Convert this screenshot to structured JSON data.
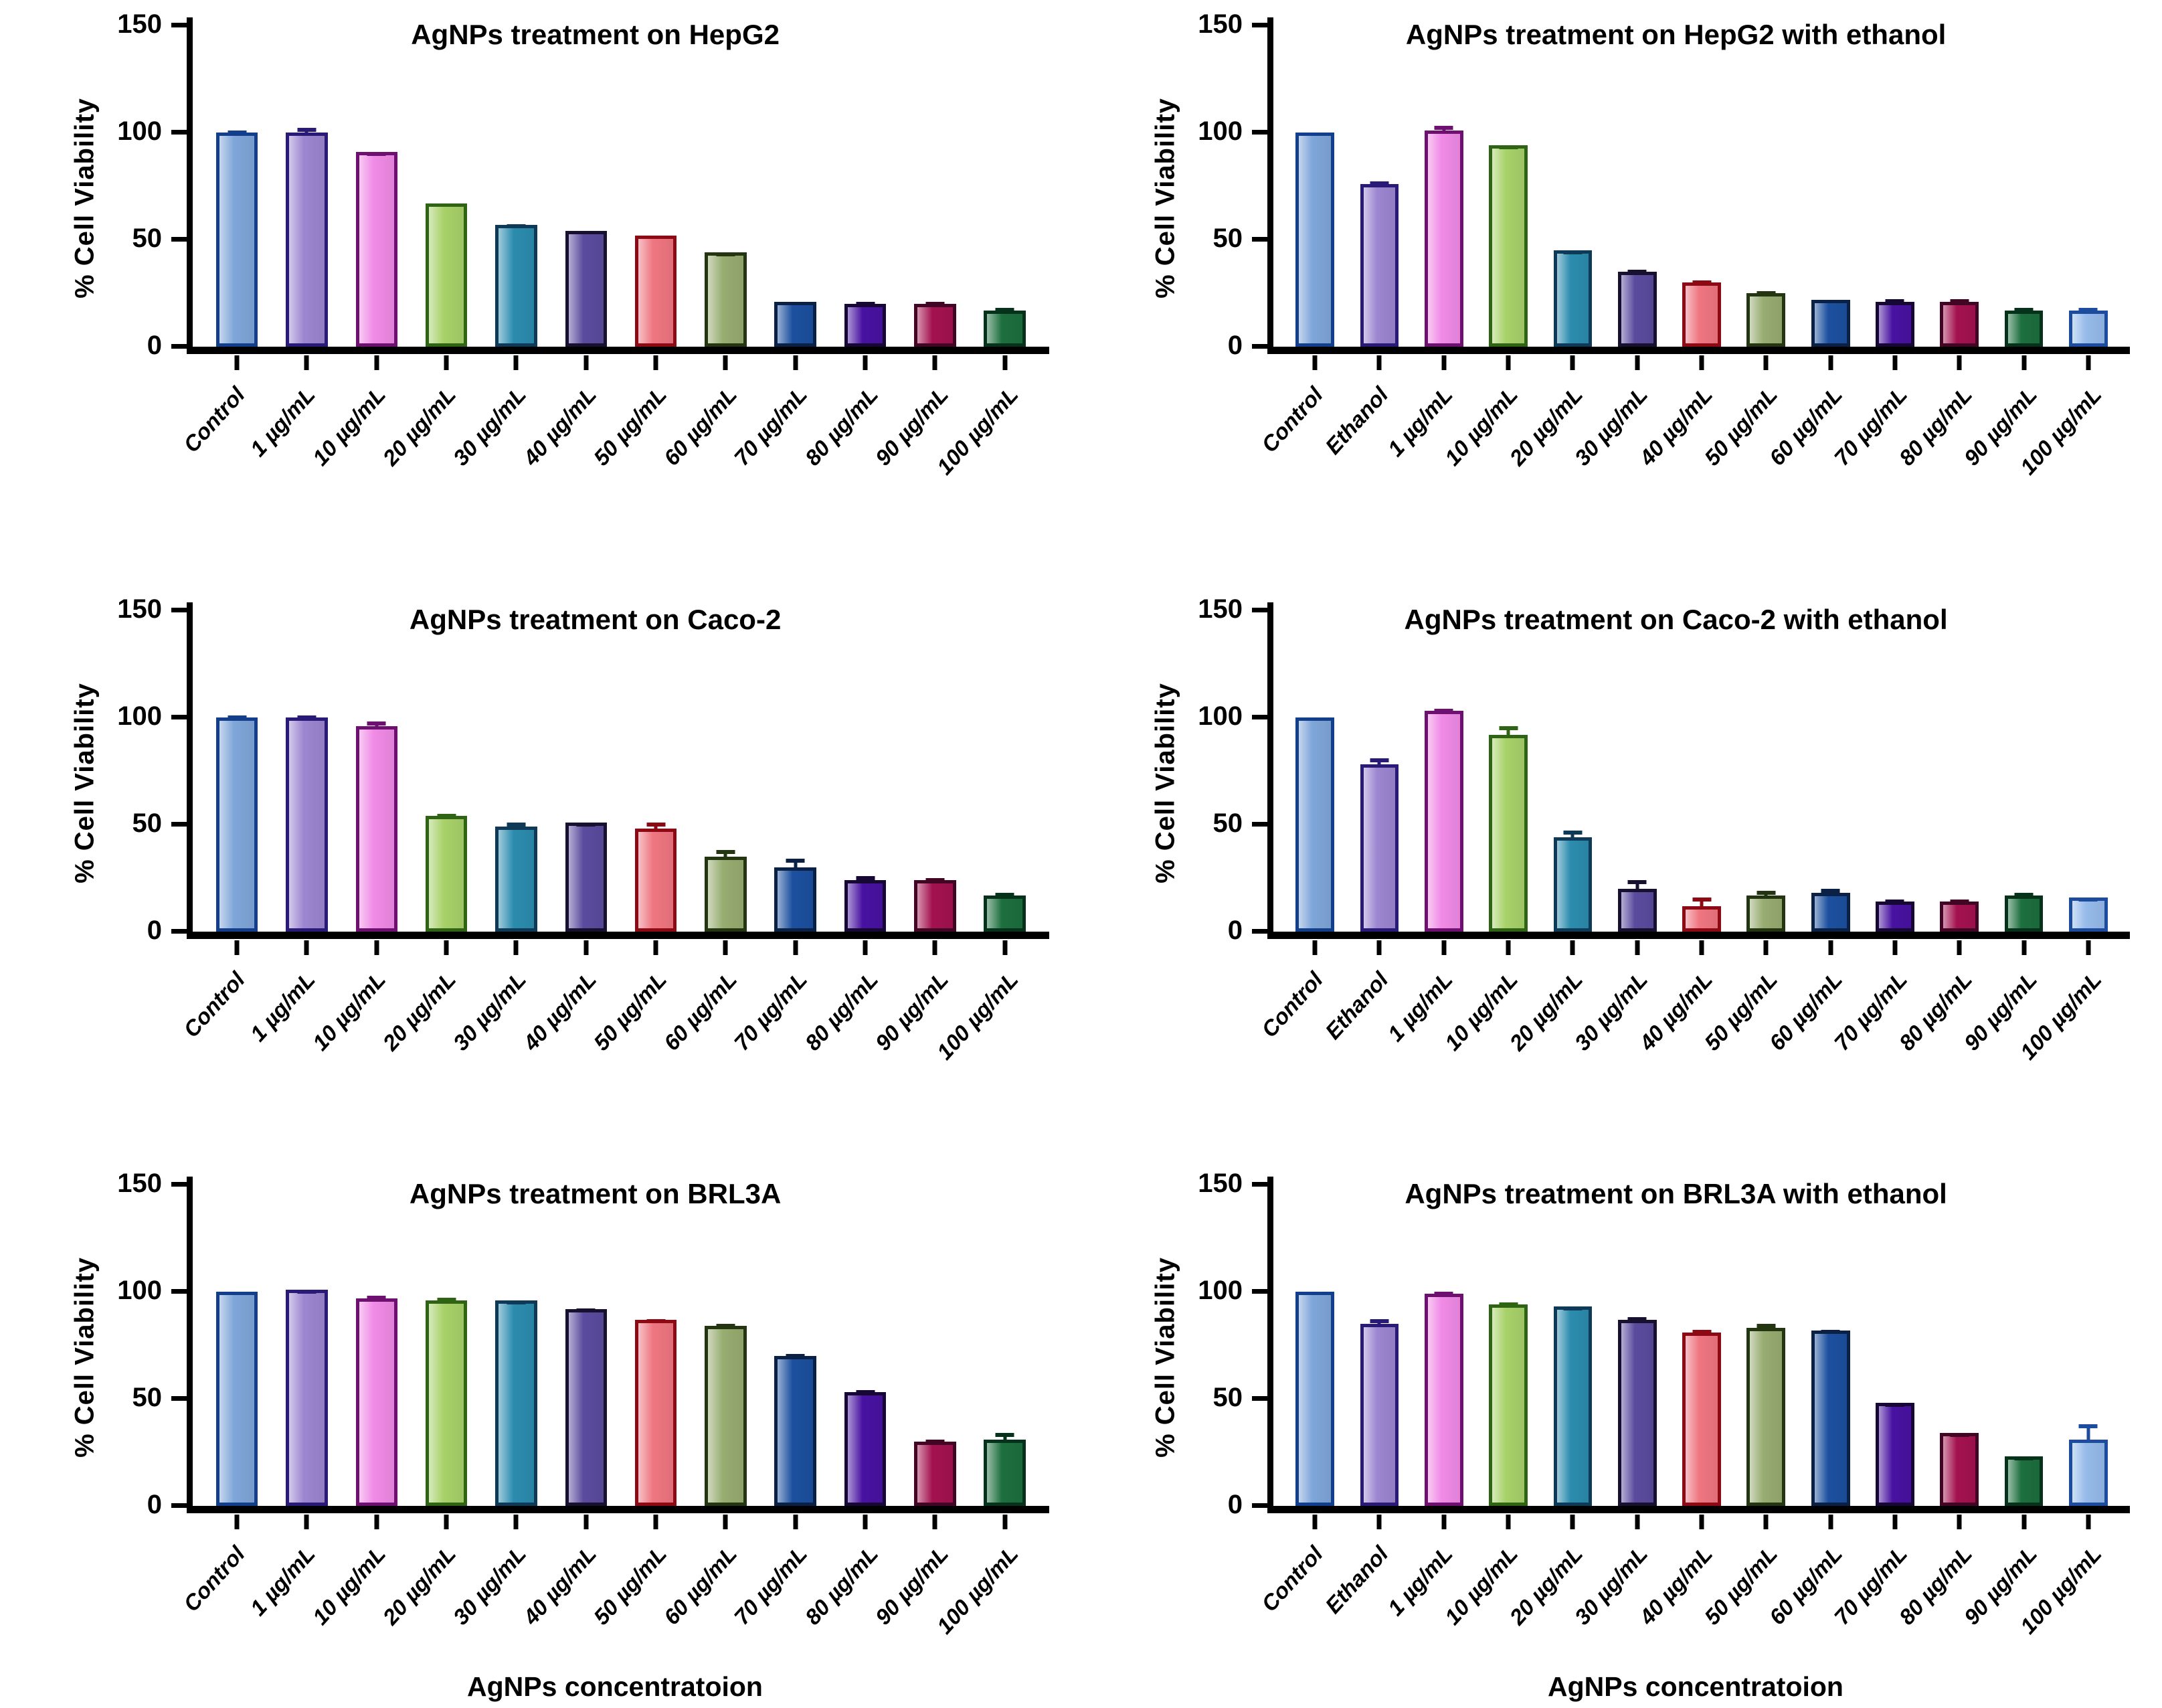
{
  "figure": {
    "y_axis_label": "% Cell Viability",
    "x_axis_title": "AgNPs concentratoion"
  },
  "palette": {
    "fills": [
      "#7FA6D9",
      "#9C86D0",
      "#F08AE6",
      "#A7D169",
      "#2C8CAE",
      "#5B4B9E",
      "#EE7681",
      "#97AC70",
      "#1C509F",
      "#4812A1",
      "#A3124F",
      "#1D6F3E",
      "#96BAEA"
    ],
    "borders": [
      "#123E8C",
      "#2A1A78",
      "#6E1070",
      "#2E6414",
      "#0E3A57",
      "#17102F",
      "#8D0A14",
      "#243611",
      "#0A2145",
      "#170734",
      "#420523",
      "#06321C",
      "#1D4C9F"
    ]
  },
  "chart_data": [
    {
      "type": "bar",
      "key": "hepg2",
      "title": "AgNPs treatment on HepG2",
      "ylabel": "% Cell Viability",
      "xlabel": "",
      "ylim": [
        0,
        150
      ],
      "yticks": [
        0,
        50,
        100,
        150
      ],
      "categories": [
        "Control",
        "1 µg/mL",
        "10 µg/mL",
        "20 µg/mL",
        "30 µg/mL",
        "40 µg/mL",
        "50 µg/mL",
        "60 µg/mL",
        "70 µg/mL",
        "80 µg/mL",
        "90 µg/mL",
        "100 µg/mL"
      ],
      "values": [
        100,
        100,
        91,
        67,
        57,
        54,
        52,
        44,
        21,
        20,
        20,
        17
      ],
      "errors": [
        2,
        3,
        1,
        0,
        1,
        0,
        0,
        1,
        0,
        2,
        2,
        2
      ]
    },
    {
      "type": "bar",
      "key": "hepg2-ethanol",
      "title": "AgNPs treatment on HepG2 with ethanol",
      "ylabel": "% Cell Viability",
      "xlabel": "",
      "ylim": [
        0,
        150
      ],
      "yticks": [
        0,
        50,
        100,
        150
      ],
      "categories": [
        "Control",
        "Ethanol",
        "1 µg/mL",
        "10 µg/mL",
        "20 µg/mL",
        "30 µg/mL",
        "40 µg/mL",
        "50 µg/mL",
        "60 µg/mL",
        "70 µg/mL",
        "80 µg/mL",
        "90 µg/mL",
        "100 µg/mL"
      ],
      "values": [
        100,
        76,
        101,
        94,
        45,
        35,
        30,
        25,
        22,
        21,
        21,
        17,
        17
      ],
      "errors": [
        0,
        2,
        3,
        1,
        1,
        2,
        2,
        2,
        0,
        2,
        2,
        2,
        2
      ]
    },
    {
      "type": "bar",
      "key": "caco2",
      "title": "AgNPs treatment on Caco-2",
      "ylabel": "% Cell Viability",
      "xlabel": "",
      "ylim": [
        0,
        150
      ],
      "yticks": [
        0,
        50,
        100,
        150
      ],
      "categories": [
        "Control",
        "1 µg/mL",
        "10 µg/mL",
        "20 µg/mL",
        "30 µg/mL",
        "40 µg/mL",
        "50 µg/mL",
        "60 µg/mL",
        "70 µg/mL",
        "80 µg/mL",
        "90 µg/mL",
        "100 µg/mL"
      ],
      "values": [
        100,
        100,
        96,
        54,
        49,
        51,
        48,
        35,
        30,
        24,
        24,
        17
      ],
      "errors": [
        2,
        2,
        3,
        2,
        3,
        1,
        4,
        4,
        5,
        3,
        2,
        2
      ]
    },
    {
      "type": "bar",
      "key": "caco2-ethanol",
      "title": "AgNPs treatment on Caco-2  with ethanol",
      "ylabel": "% Cell Viability",
      "xlabel": "",
      "ylim": [
        0,
        150
      ],
      "yticks": [
        0,
        50,
        100,
        150
      ],
      "categories": [
        "Control",
        "Ethanol",
        "1 µg/mL",
        "10 µg/mL",
        "20 µg/mL",
        "30 µg/mL",
        "40 µg/mL",
        "50 µg/mL",
        "60 µg/mL",
        "70 µg/mL",
        "80 µg/mL",
        "90 µg/mL",
        "100 µg/mL"
      ],
      "values": [
        100,
        78,
        103,
        92,
        44,
        20,
        12,
        17,
        18,
        14,
        14,
        17,
        16
      ],
      "errors": [
        0,
        4,
        2,
        5,
        4,
        5,
        5,
        3,
        3,
        2,
        2,
        2,
        1
      ]
    },
    {
      "type": "bar",
      "key": "brl3a",
      "title": "AgNPs treatment on BRL3A",
      "ylabel": "% Cell Viability",
      "xlabel": "AgNPs concentratoion",
      "ylim": [
        0,
        150
      ],
      "yticks": [
        0,
        50,
        100,
        150
      ],
      "categories": [
        "Control",
        "1 µg/mL",
        "10 µg/mL",
        "20 µg/mL",
        "30 µg/mL",
        "40 µg/mL",
        "50 µg/mL",
        "60 µg/mL",
        "70 µg/mL",
        "80 µg/mL",
        "90 µg/mL",
        "100 µg/mL"
      ],
      "values": [
        100,
        101,
        97,
        96,
        96,
        92,
        87,
        84,
        70,
        53,
        30,
        31
      ],
      "errors": [
        0,
        1,
        2,
        2,
        1,
        1,
        1,
        2,
        2,
        2,
        2,
        4
      ]
    },
    {
      "type": "bar",
      "key": "brl3a-ethanol",
      "title": "AgNPs treatment on BRL3A with ethanol",
      "ylabel": "% Cell Viability",
      "xlabel": "AgNPs concentratoion",
      "ylim": [
        0,
        150
      ],
      "yticks": [
        0,
        50,
        100,
        150
      ],
      "categories": [
        "Control",
        "Ethanol",
        "1 µg/mL",
        "10 µg/mL",
        "20 µg/mL",
        "30 µg/mL",
        "40 µg/mL",
        "50 µg/mL",
        "60 µg/mL",
        "70 µg/mL",
        "80 µg/mL",
        "90 µg/mL",
        "100 µg/mL"
      ],
      "values": [
        100,
        85,
        99,
        94,
        93,
        87,
        81,
        83,
        82,
        48,
        34,
        23,
        31
      ],
      "errors": [
        0,
        3,
        2,
        2,
        1,
        2,
        2,
        3,
        1,
        1,
        1,
        1,
        8
      ]
    }
  ]
}
